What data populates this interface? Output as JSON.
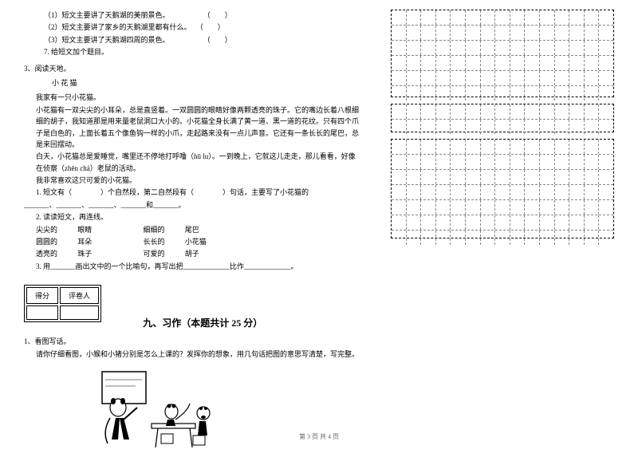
{
  "questions_top": {
    "q1": "（1）短文主要讲了天鹅湖的美丽景色。",
    "q2": "（2）短文主要讲了家乡的天鹅湖里都有什么。",
    "q3": "（3）短文主要讲了天鹅湖四周的景色。",
    "q7": "7. 给短文加个题目。",
    "bracket": "（　　）"
  },
  "reading": {
    "num": "3、阅读天地。",
    "title": "小 花 猫",
    "para1": "我家有一只小花猫。",
    "para2": "小花猫有一双尖尖的小耳朵，总是直竖着。一双圆圆的眼睛好像两颗透亮的珠子。它的嘴边长着八根细细的胡子，我知道那是用来量老鼠洞口大小的。小花猫全身长满了黄一道、黑一道的花纹。只有四个爪子是白色的，上面长着五个像鱼钩一样的小爪，走起路来没有一点儿声音。它还有一条长长的尾巴，总是来回摆动。",
    "para3": "白天，小花猫总是爱睡觉，嘴里还不停地打呼噜（hū  lu）。一到晚上，它就这儿走走，那儿看看，好像在侦察（zhēn  chá）老鼠的活动。",
    "para4": "我非常喜欢这只可爱的小花猫。",
    "sub1": "1. 短文有（　　　　）个自然段，第二自然段有（　　　　）句话，主要写了小花猫的",
    "sub1_blank": "_______、_______、_______、_______和_______。",
    "sub2": "2. 读读短文，再连线。",
    "pair1a": "尖尖的",
    "pair1b": "眼睛",
    "pair1c": "细细的",
    "pair1d": "尾巴",
    "pair2a": "圆圆的",
    "pair2b": "耳朵",
    "pair2c": "长长的",
    "pair2d": "小花猫",
    "pair3a": "透亮的",
    "pair3b": "珠子",
    "pair3c": "可爱的",
    "pair3d": "胡子",
    "sub3": "3. 用_______画出文中的一个比喻句，再写出把_____________比作_____________。"
  },
  "score": {
    "col1": "得分",
    "col2": "评卷人"
  },
  "section9": {
    "title": "九、习作（本题共计 25 分）",
    "q1": "1、看图写话。",
    "instruction": "请你仔细看图，小猴和小猪分别是怎么上课的？发挥你的想象，用几句话把图的意思写清楚，写完整。"
  },
  "footer": "第 3 页  共 4 页",
  "grid": {
    "cols": 15,
    "box1_rows": 6,
    "box2_rows": 2,
    "box3_rows": 7
  }
}
